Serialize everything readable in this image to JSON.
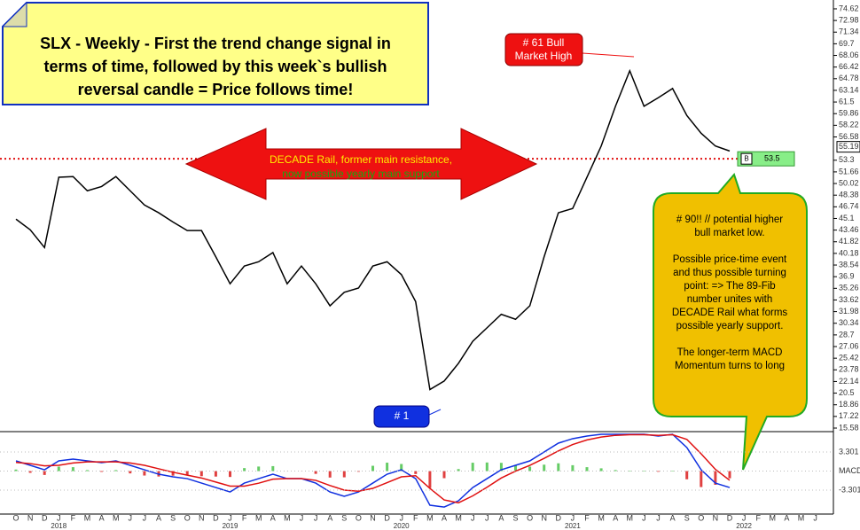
{
  "chart_data": {
    "type": "line",
    "title_lines": [
      "SLX - Weekly - First the trend change signal in",
      "terms of time, followed by this week`s bullish",
      "reversal candle = Price follows time!"
    ],
    "categories": [
      "O",
      "N",
      "D",
      "J",
      "F",
      "M",
      "A",
      "M",
      "J",
      "J",
      "A",
      "S",
      "O",
      "N",
      "D",
      "J",
      "F",
      "M",
      "A",
      "M",
      "J",
      "J",
      "A",
      "S",
      "O",
      "N",
      "D",
      "J",
      "F",
      "M",
      "A",
      "M",
      "J",
      "J",
      "A",
      "S",
      "O",
      "N",
      "D",
      "J",
      "F",
      "M",
      "A",
      "M",
      "J",
      "J",
      "A",
      "S",
      "O",
      "N",
      "D",
      "J",
      "F",
      "M",
      "A",
      "M",
      "J"
    ],
    "years": [
      "2018",
      "2019",
      "2020",
      "2021",
      "2022"
    ],
    "series": [
      {
        "name": "SLX",
        "color": "#000000",
        "values": [
          45,
          43.5,
          41,
          50.9,
          51,
          49,
          49.6,
          51,
          49,
          47,
          45.9,
          44.6,
          43.4,
          43.4,
          39.7,
          35.9,
          38.4,
          39,
          40.3,
          35.9,
          38.4,
          35.9,
          32.8,
          34.7,
          35.3,
          38.4,
          39,
          37.2,
          33.4,
          21,
          22.2,
          24.7,
          27.8,
          29.7,
          31.6,
          30.9,
          32.8,
          39.7,
          45.9,
          46.5,
          50.9,
          55.3,
          60.9,
          65.9,
          60.9,
          62.1,
          63.4,
          59.6,
          57.1,
          55.3,
          54.6,
          null,
          null,
          null,
          null,
          null,
          null
        ]
      }
    ],
    "ylim": [
      15.08,
      75.24
    ],
    "yticks": [
      74.62,
      72.98,
      71.34,
      69.7,
      68.06,
      66.42,
      64.78,
      63.14,
      61.5,
      59.86,
      58.22,
      56.58,
      53.3,
      51.66,
      50.02,
      48.38,
      46.74,
      45.1,
      43.46,
      41.82,
      40.18,
      38.54,
      36.9,
      35.26,
      33.62,
      31.98,
      30.34,
      28.7,
      27.06,
      25.42,
      23.78,
      22.14,
      20.5,
      18.86,
      17.22,
      15.58
    ],
    "last_price": 55.19,
    "rail": {
      "value": 53.5,
      "color": "#e01010",
      "tag": "B",
      "label_lines": [
        "DECADE Rail, former main resistance,",
        "now possible yearly main support"
      ]
    },
    "annotations": {
      "high": [
        "# 61 Bull",
        "Market High"
      ],
      "low": "# 1",
      "callout": [
        "# 90!! // potential higher",
        "bull market low.",
        "",
        "Possible price-time event",
        "and thus possible turning",
        "point: => The 89-Fib",
        "number unites with",
        "DECADE Rail what forms",
        "possible yearly support.",
        "",
        "The longer-term MACD",
        "Momentum turns to long"
      ]
    },
    "macd": {
      "ylim": [
        -7.45,
        6.69
      ],
      "yticks": [
        3.301,
        {
          "value": 0,
          "label": "MACD"
        },
        -3.301
      ],
      "up_color": "#66cc66",
      "down_color": "#e04040",
      "series": [
        {
          "name": "MACD",
          "color": "#1030e0",
          "values": [
            1.77,
            1.0,
            0.23,
            1.77,
            2.08,
            1.77,
            1.46,
            1.77,
            1.0,
            0.23,
            -0.54,
            -1.0,
            -1.31,
            -2.08,
            -2.85,
            -3.62,
            -2.08,
            -1.31,
            -0.54,
            -1.31,
            -1.31,
            -2.08,
            -3.62,
            -4.38,
            -3.62,
            -2.08,
            -0.54,
            0.23,
            -1.31,
            -5.92,
            -6.23,
            -5.15,
            -2.85,
            -1.31,
            0.23,
            1.0,
            1.77,
            3.31,
            4.85,
            5.62,
            6.08,
            6.38,
            6.38,
            6.38,
            6.38,
            6.08,
            6.38,
            4.08,
            0.23,
            -2.08,
            -2.85,
            null,
            null,
            null,
            null,
            null,
            null
          ]
        },
        {
          "name": "Signal",
          "color": "#e01010",
          "values": [
            1.5,
            1.3,
            0.9,
            1.0,
            1.4,
            1.6,
            1.6,
            1.6,
            1.4,
            1.0,
            0.4,
            -0.2,
            -0.7,
            -1.2,
            -1.9,
            -2.6,
            -2.6,
            -2.1,
            -1.4,
            -1.3,
            -1.3,
            -1.6,
            -2.5,
            -3.3,
            -3.5,
            -3.0,
            -2.0,
            -1.0,
            -0.8,
            -3.0,
            -5.0,
            -5.5,
            -4.3,
            -2.8,
            -1.2,
            0.0,
            1.0,
            2.2,
            3.5,
            4.6,
            5.4,
            5.9,
            6.2,
            6.3,
            6.3,
            6.2,
            6.3,
            5.5,
            3.0,
            0.3,
            -1.6,
            null,
            null,
            null,
            null,
            null,
            null
          ]
        }
      ],
      "histogram": [
        0.27,
        -0.3,
        -0.67,
        0.77,
        0.68,
        0.17,
        -0.14,
        0.17,
        -0.4,
        -0.77,
        -0.94,
        -0.8,
        -0.61,
        -0.88,
        -0.95,
        -1.02,
        0.52,
        0.79,
        0.86,
        -0.01,
        -0.01,
        -0.48,
        -1.12,
        -1.08,
        -0.12,
        0.92,
        1.46,
        1.23,
        -0.51,
        -2.92,
        -1.23,
        0.35,
        1.45,
        1.49,
        1.43,
        1.0,
        0.77,
        1.11,
        1.35,
        1.02,
        0.68,
        0.48,
        0.18,
        0.08,
        0.08,
        -0.12,
        0.08,
        -1.42,
        -2.77,
        -2.38,
        -1.25,
        null,
        null,
        null,
        null,
        null,
        null
      ]
    }
  }
}
